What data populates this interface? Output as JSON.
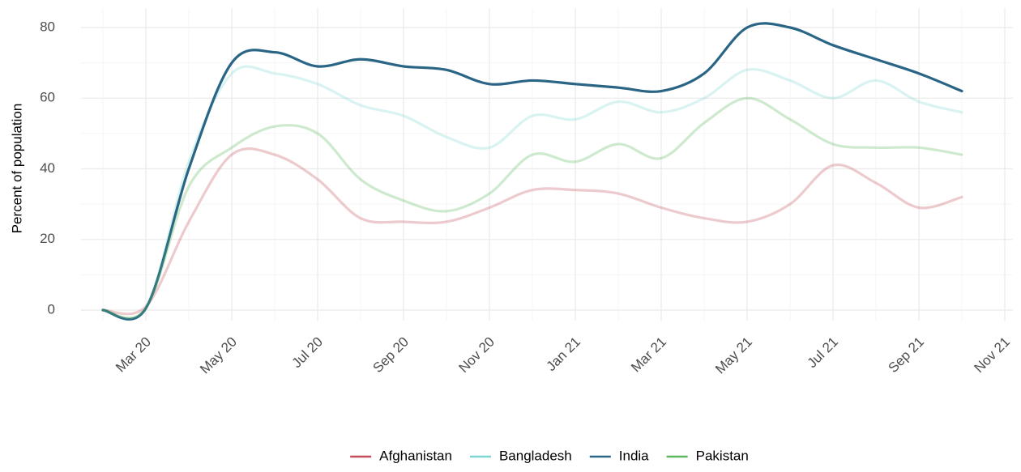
{
  "chart_data": {
    "type": "line",
    "y_label": "Percent of population",
    "x": [
      "2020-02",
      "2020-03",
      "2020-04",
      "2020-05",
      "2020-06",
      "2020-07",
      "2020-08",
      "2020-09",
      "2020-10",
      "2020-11",
      "2020-12",
      "2021-01",
      "2021-02",
      "2021-03",
      "2021-04",
      "2021-05",
      "2021-06",
      "2021-07",
      "2021-08",
      "2021-09",
      "2021-10"
    ],
    "series": [
      {
        "name": "Afghanistan",
        "color": "#c44e5a",
        "opacity": 0.3,
        "values": [
          0,
          1,
          25,
          44,
          44,
          37,
          26,
          25,
          25,
          29,
          34,
          34,
          33,
          29,
          26,
          25,
          30,
          41,
          36,
          29,
          32
        ]
      },
      {
        "name": "Bangladesh",
        "color": "#7ed6d0",
        "opacity": 0.3,
        "values": [
          0,
          0.5,
          42,
          67,
          67,
          64,
          58,
          55,
          49,
          46,
          55,
          54,
          59,
          56,
          60,
          68,
          65,
          60,
          65,
          59,
          56
        ]
      },
      {
        "name": "India",
        "color": "#2a6585",
        "opacity": 1,
        "values": [
          0,
          0.5,
          40,
          70,
          73,
          69,
          71,
          69,
          68,
          64,
          65,
          64,
          63,
          62,
          67,
          80,
          80,
          75,
          71,
          67,
          62
        ]
      },
      {
        "name": "Pakistan",
        "color": "#5cb85c",
        "opacity": 0.3,
        "values": [
          0,
          0.5,
          35,
          46,
          52,
          50,
          37,
          31,
          28,
          33,
          44,
          42,
          47,
          43,
          53,
          60,
          54,
          47,
          46,
          46,
          44
        ]
      }
    ],
    "xlim": [
      "2020-01",
      "2021-11"
    ],
    "xticks": [
      {
        "value": "2020-03",
        "label": "Mar 20"
      },
      {
        "value": "2020-05",
        "label": "May 20"
      },
      {
        "value": "2020-07",
        "label": "Jul 20"
      },
      {
        "value": "2020-09",
        "label": "Sep 20"
      },
      {
        "value": "2020-11",
        "label": "Nov 20"
      },
      {
        "value": "2021-01",
        "label": "Jan 21"
      },
      {
        "value": "2021-03",
        "label": "Mar 21"
      },
      {
        "value": "2021-05",
        "label": "May 21"
      },
      {
        "value": "2021-07",
        "label": "Jul 21"
      },
      {
        "value": "2021-09",
        "label": "Sep 21"
      },
      {
        "value": "2021-11",
        "label": "Nov 21"
      }
    ],
    "ylim": [
      0,
      80
    ],
    "yticks": [
      0,
      20,
      40,
      60,
      80
    ],
    "grid": true,
    "legend": "bottom"
  }
}
